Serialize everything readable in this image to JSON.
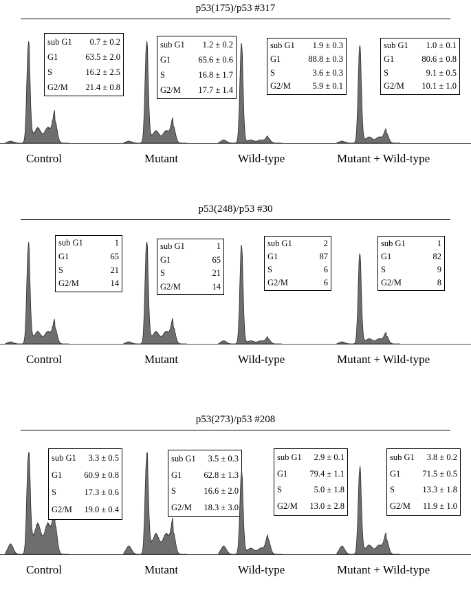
{
  "chart_data": [
    {
      "type": "histogram",
      "title": "p53(175)/p53 #317",
      "stat_keys": [
        "sub G1",
        "G1",
        "S",
        "G2/M"
      ],
      "conditions": [
        {
          "label": "Control",
          "values": [
            "0.7 ± 0.2",
            "63.5 ± 2.0",
            "16.2 ± 2.5",
            "21.4 ± 0.8"
          ],
          "profile": {
            "g1_peak": 0.95,
            "g2_peak": 0.22,
            "s_level": 0.15,
            "subg1": 0.02
          }
        },
        {
          "label": "Mutant",
          "values": [
            "1.2 ± 0.2",
            "65.6 ± 0.6",
            "16.8 ± 1.7",
            "17.7 ± 1.4"
          ],
          "profile": {
            "g1_peak": 0.97,
            "g2_peak": 0.17,
            "s_level": 0.12,
            "subg1": 0.02
          }
        },
        {
          "label": "Wild-type",
          "values": [
            "1.9 ± 0.3",
            "88.8 ± 0.3",
            "3.6 ± 0.3",
            "5.9 ± 0.1"
          ],
          "profile": {
            "g1_peak": 0.98,
            "g2_peak": 0.05,
            "s_level": 0.03,
            "subg1": 0.03
          }
        },
        {
          "label": "Mutant + Wild-type",
          "values": [
            "1.0 ± 0.1",
            "80.6 ± 0.8",
            "9.1 ± 0.5",
            "10.1 ± 1.0"
          ],
          "profile": {
            "g1_peak": 0.95,
            "g2_peak": 0.1,
            "s_level": 0.06,
            "subg1": 0.02
          }
        }
      ]
    },
    {
      "type": "histogram",
      "title": "p53(248)/p53 #30",
      "stat_keys": [
        "sub G1",
        "G1",
        "S",
        "G2/M"
      ],
      "conditions": [
        {
          "label": "Control",
          "values": [
            "1",
            "65",
            "21",
            "14"
          ],
          "profile": {
            "g1_peak": 0.95,
            "g2_peak": 0.16,
            "s_level": 0.12,
            "subg1": 0.02
          }
        },
        {
          "label": "Mutant",
          "values": [
            "1",
            "65",
            "21",
            "14"
          ],
          "profile": {
            "g1_peak": 0.98,
            "g2_peak": 0.17,
            "s_level": 0.12,
            "subg1": 0.02
          }
        },
        {
          "label": "Wild-type",
          "values": [
            "2",
            "87",
            "6",
            "6"
          ],
          "profile": {
            "g1_peak": 0.97,
            "g2_peak": 0.05,
            "s_level": 0.03,
            "subg1": 0.03
          }
        },
        {
          "label": "Mutant + Wild-type",
          "values": [
            "1",
            "82",
            "9",
            "8"
          ],
          "profile": {
            "g1_peak": 0.88,
            "g2_peak": 0.08,
            "s_level": 0.05,
            "subg1": 0.02
          }
        }
      ]
    },
    {
      "type": "histogram",
      "title": "p53(273)/p53 #208",
      "stat_keys": [
        "sub G1",
        "G1",
        "S",
        "G2/M"
      ],
      "conditions": [
        {
          "label": "Control",
          "values": [
            "3.3 ± 0.5",
            "60.9 ± 0.8",
            "17.3 ± 0.6",
            "19.0 ± 0.4"
          ],
          "profile": {
            "g1_peak": 0.96,
            "g2_peak": 0.3,
            "s_level": 0.3,
            "subg1": 0.1
          }
        },
        {
          "label": "Mutant",
          "values": [
            "3.5 ± 0.3",
            "62.8 ± 1.3",
            "16.6 ± 2.0",
            "18.3 ± 3.0"
          ],
          "profile": {
            "g1_peak": 0.93,
            "g2_peak": 0.22,
            "s_level": 0.2,
            "subg1": 0.08
          }
        },
        {
          "label": "Wild-type",
          "values": [
            "2.9 ± 0.1",
            "79.4 ± 1.1",
            "5.0 ± 1.8",
            "13.0 ± 2.8"
          ],
          "profile": {
            "g1_peak": 0.8,
            "g2_peak": 0.15,
            "s_level": 0.06,
            "subg1": 0.08
          }
        },
        {
          "label": "Mutant + Wild-type",
          "values": [
            "3.8 ± 0.2",
            "71.5 ± 0.5",
            "13.3 ± 1.8",
            "11.9 ± 1.0"
          ],
          "profile": {
            "g1_peak": 0.83,
            "g2_peak": 0.15,
            "s_level": 0.09,
            "subg1": 0.08
          }
        }
      ]
    }
  ],
  "colors": {
    "histogram_fill": "#6e6e6e",
    "histogram_stroke": "#2e2e2e",
    "text": "#000000"
  }
}
